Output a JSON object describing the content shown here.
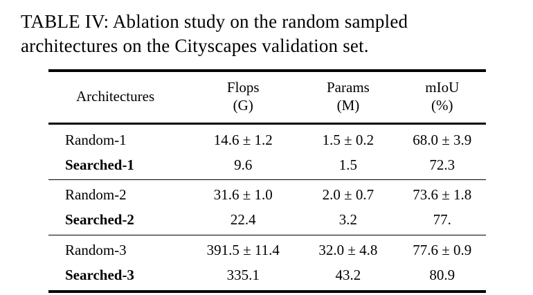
{
  "caption": {
    "text": "TABLE IV: Ablation study on the random sampled architectures on the Cityscapes validation set."
  },
  "table": {
    "columns": [
      {
        "label": "Architectures",
        "sub": ""
      },
      {
        "label": "Flops",
        "sub": "(G)"
      },
      {
        "label": "Params",
        "sub": "(M)"
      },
      {
        "label": "mIoU",
        "sub": "(%)"
      }
    ],
    "groups": [
      {
        "rows": [
          {
            "name": "Random-1",
            "bold": false,
            "flops": "14.6 ± 1.2",
            "params": "1.5 ± 0.2",
            "miou": "68.0 ± 3.9"
          },
          {
            "name": "Searched-1",
            "bold": true,
            "flops": "9.6",
            "params": "1.5",
            "miou": "72.3"
          }
        ]
      },
      {
        "rows": [
          {
            "name": "Random-2",
            "bold": false,
            "flops": "31.6 ± 1.0",
            "params": "2.0 ± 0.7",
            "miou": "73.6 ± 1.8"
          },
          {
            "name": "Searched-2",
            "bold": true,
            "flops": "22.4",
            "params": "3.2",
            "miou": "77."
          }
        ]
      },
      {
        "rows": [
          {
            "name": "Random-3",
            "bold": false,
            "flops": "391.5 ± 11.4",
            "params": "32.0 ± 4.8",
            "miou": "77.6 ± 0.9"
          },
          {
            "name": "Searched-3",
            "bold": true,
            "flops": "335.1",
            "params": "43.2",
            "miou": "80.9"
          }
        ]
      }
    ]
  }
}
